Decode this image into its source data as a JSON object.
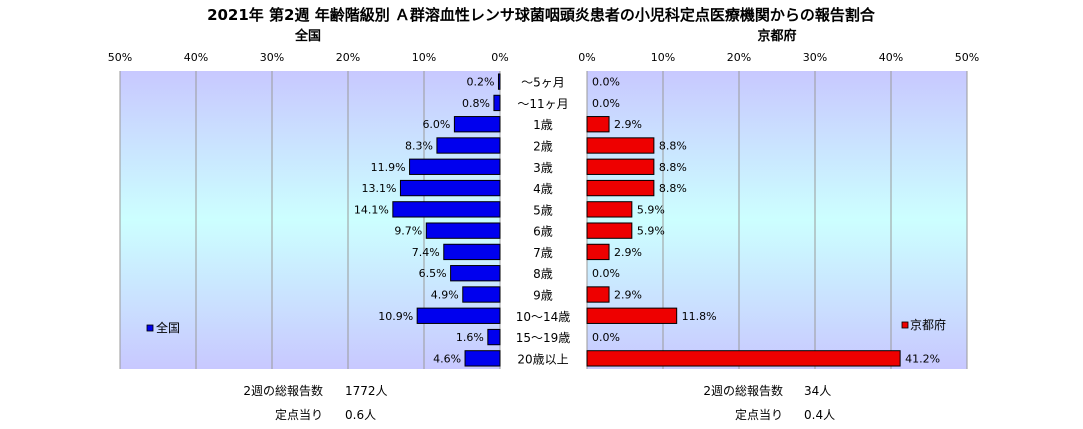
{
  "title": "2021年 第2週 年齢階級別 Ａ群溶血性レンサ球菌咽頭炎患者の小児科定点医療機関からの報告割合",
  "colors": {
    "national_bar": "#0000ee",
    "kyoto_bar": "#ee0000",
    "plot_bg_edge": "#c8c8ff",
    "plot_bg_center": "#ccffff"
  },
  "chart_data": [
    {
      "type": "bar",
      "orientation": "horizontal",
      "direction": "right-to-left",
      "title": "全国",
      "legend": "全国",
      "legend_position": "bottom-left",
      "unit": "%",
      "xlim": [
        0,
        50
      ],
      "ticks": [
        "50%",
        "40%",
        "30%",
        "20%",
        "10%",
        "0%"
      ],
      "grid": true,
      "categories": [
        "〜5ヶ月",
        "〜11ヶ月",
        "1歳",
        "2歳",
        "3歳",
        "4歳",
        "5歳",
        "6歳",
        "7歳",
        "8歳",
        "9歳",
        "10〜14歳",
        "15〜19歳",
        "20歳以上"
      ],
      "values": [
        0.2,
        0.8,
        6.0,
        8.3,
        11.9,
        13.1,
        14.1,
        9.7,
        7.4,
        6.5,
        4.9,
        10.9,
        1.6,
        4.6
      ],
      "labels": [
        "0.2%",
        "0.8%",
        "6.0%",
        "8.3%",
        "11.9%",
        "13.1%",
        "14.1%",
        "9.7%",
        "7.4%",
        "6.5%",
        "4.9%",
        "10.9%",
        "1.6%",
        "4.6%"
      ]
    },
    {
      "type": "bar",
      "orientation": "horizontal",
      "direction": "left-to-right",
      "title": "京都府",
      "legend": "京都府",
      "legend_position": "bottom-right",
      "unit": "%",
      "xlim": [
        0,
        50
      ],
      "ticks": [
        "0%",
        "10%",
        "20%",
        "30%",
        "40%",
        "50%"
      ],
      "grid": true,
      "categories": [
        "〜5ヶ月",
        "〜11ヶ月",
        "1歳",
        "2歳",
        "3歳",
        "4歳",
        "5歳",
        "6歳",
        "7歳",
        "8歳",
        "9歳",
        "10〜14歳",
        "15〜19歳",
        "20歳以上"
      ],
      "values": [
        0.0,
        0.0,
        2.9,
        8.8,
        8.8,
        8.8,
        5.9,
        5.9,
        2.9,
        0.0,
        2.9,
        11.8,
        0.0,
        41.2
      ],
      "labels": [
        "0.0%",
        "0.0%",
        "2.9%",
        "8.8%",
        "8.8%",
        "8.8%",
        "5.9%",
        "5.9%",
        "2.9%",
        "0.0%",
        "2.9%",
        "11.8%",
        "0.0%",
        "41.2%"
      ]
    }
  ],
  "summary": {
    "national": {
      "total_label": "2週の総報告数",
      "total_value": "1772人",
      "per_site_label": "定点当り",
      "per_site_value": "0.6人"
    },
    "kyoto": {
      "total_label": "2週の総報告数",
      "total_value": "34人",
      "per_site_label": "定点当り",
      "per_site_value": "0.4人"
    }
  }
}
